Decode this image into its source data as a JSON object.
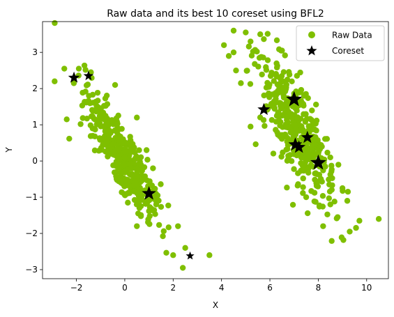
{
  "chart_data": {
    "type": "scatter",
    "title": "Raw data and its best 10 coreset using BFL2",
    "xlabel": "X",
    "ylabel": "Y",
    "xlim": [
      -3.4,
      10.9
    ],
    "ylim": [
      -3.25,
      3.85
    ],
    "xticks": [
      -2,
      0,
      2,
      4,
      6,
      8,
      10
    ],
    "yticks": [
      -3,
      -2,
      -1,
      0,
      1,
      2,
      3
    ],
    "grid": false,
    "legend_position": "top-right",
    "series": [
      {
        "name": "Raw Data",
        "color": "#7fbf00",
        "marker": "circle",
        "clusters": [
          {
            "center": [
              -0.1,
              0.1
            ],
            "direction": [
              0.63,
              -0.78
            ],
            "major_sd": 1.15,
            "minor_sd": 0.33,
            "count": 380
          },
          {
            "center": [
              7.1,
              0.85
            ],
            "direction": [
              0.55,
              -0.83
            ],
            "major_sd": 1.2,
            "minor_sd": 0.42,
            "count": 400
          }
        ],
        "points": [
          [
            -2.9,
            2.2
          ],
          [
            -2.5,
            2.55
          ],
          [
            -1.9,
            2.55
          ],
          [
            -1.4,
            2.45
          ],
          [
            -2.4,
            1.15
          ],
          [
            -0.4,
            2.1
          ],
          [
            0.5,
            1.2
          ],
          [
            0.9,
            0.3
          ],
          [
            1.3,
            -1.2
          ],
          [
            2.0,
            -2.6
          ],
          [
            2.4,
            -2.95
          ],
          [
            3.5,
            -2.6
          ],
          [
            2.5,
            -2.4
          ],
          [
            2.2,
            -1.8
          ],
          [
            0.5,
            -1.8
          ],
          [
            4.5,
            3.6
          ],
          [
            5.0,
            3.55
          ],
          [
            5.2,
            3.3
          ],
          [
            5.6,
            3.5
          ],
          [
            4.1,
            3.2
          ],
          [
            6.5,
            3.05
          ],
          [
            4.8,
            2.15
          ],
          [
            4.5,
            3.0
          ],
          [
            4.3,
            2.9
          ],
          [
            4.6,
            2.5
          ],
          [
            5.2,
            0.95
          ],
          [
            9.0,
            -0.75
          ],
          [
            9.2,
            -1.1
          ],
          [
            8.8,
            -1.55
          ],
          [
            9.3,
            -1.95
          ],
          [
            9.7,
            -1.65
          ],
          [
            10.5,
            -1.6
          ],
          [
            8.5,
            -1.2
          ],
          [
            8.2,
            -1.8
          ],
          [
            7.5,
            -1.0
          ]
        ]
      },
      {
        "name": "Coreset",
        "color": "#000000",
        "marker": "star",
        "points": [
          {
            "x": -2.1,
            "y": 2.3,
            "weight": 0.6
          },
          {
            "x": -1.5,
            "y": 2.35,
            "weight": 0.45
          },
          {
            "x": 1.0,
            "y": -0.9,
            "weight": 0.85
          },
          {
            "x": 2.7,
            "y": -2.62,
            "weight": 0.3
          },
          {
            "x": 5.75,
            "y": 1.42,
            "weight": 0.7
          },
          {
            "x": 7.0,
            "y": 1.7,
            "weight": 1.0
          },
          {
            "x": 7.05,
            "y": 0.45,
            "weight": 0.8
          },
          {
            "x": 7.2,
            "y": 0.38,
            "weight": 0.75
          },
          {
            "x": 7.55,
            "y": 0.65,
            "weight": 0.7
          },
          {
            "x": 8.0,
            "y": -0.05,
            "weight": 1.0
          }
        ]
      }
    ]
  }
}
